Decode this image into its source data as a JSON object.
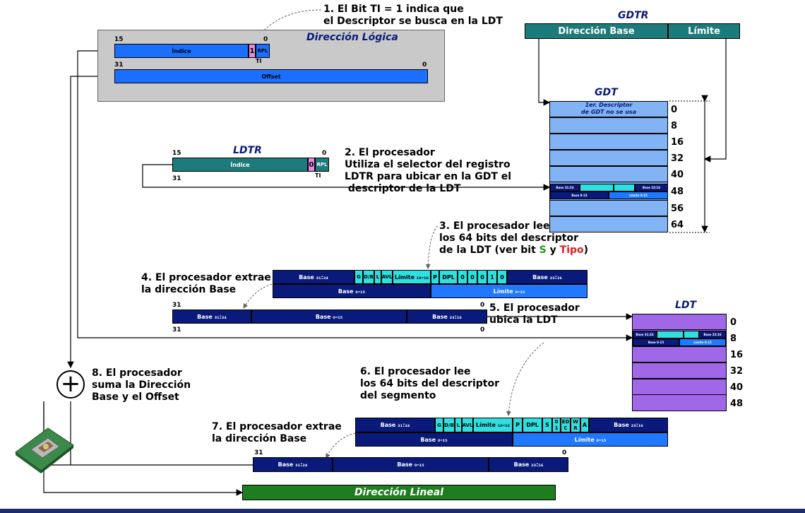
{
  "steps": {
    "s1": "1. El Bit TI = 1 indica que\nel Descriptor se busca en la LDT",
    "s2": "2. El procesador\nUtiliza el selector del registro\nLDTR para ubicar en la GDT el\n descriptor de la LDT",
    "s3a": "3. El procesador lee\nlos 64 bits del descriptor\nde la LDT (ver bit ",
    "s3_s": "S",
    "s3_y": " y ",
    "s3_tipo": "Tipo",
    "s3_end": ")",
    "s4": "4. El procesador extrae\nla dirección Base",
    "s5": "5. El procesador\nubica la LDT",
    "s6": "6. El procesador lee\nlos 64 bits del descriptor\ndel segmento",
    "s7": "7. El procesador extrae\nla dirección Base",
    "s8": "8. El procesador\nsuma la Dirección\nBase y el Offset"
  },
  "logical": {
    "title": "Dirección Lógica",
    "bit15": "15",
    "bit0": "0",
    "bit31": "31",
    "bit0b": "0",
    "indice": "Índice",
    "ti": "1",
    "rpl": "RPL",
    "ti_label": "TI",
    "offset": "Offset"
  },
  "gdtr": {
    "title": "GDTR",
    "base": "Dirección Base",
    "limite": "Límite"
  },
  "gdt": {
    "title": "GDT",
    "first": "1er. Descriptor\nde GDT no se usa",
    "offsets": [
      "0",
      "8",
      "16",
      "32",
      "40",
      "48",
      "56",
      "64"
    ],
    "mini_base_hi": "Base 31:24",
    "mini_base_mid": "Base 23:16",
    "mini_base_lo": "Base 0-15",
    "mini_limite": "Límite 0-15"
  },
  "ldtr": {
    "title": "LDTR",
    "bit15": "15",
    "bit0": "0",
    "bit31": "31",
    "indice": "Índice",
    "ti": "0",
    "rpl": "RPL",
    "ti_label": "TI"
  },
  "desc1": {
    "base_hi": "Base ₃₁:₂₄",
    "g": "G",
    "db": "D/B",
    "l": "L",
    "avl": "AVL",
    "lim_hi": "Límite ₁₉-₁₆",
    "p": "P",
    "dpl": "DPL",
    "type_bits": [
      "0",
      "0",
      "0",
      "1",
      "0"
    ],
    "base_mid": "Base ₂₃:₁₆",
    "base_lo": "Base ₀-₁₅",
    "lim_lo": "Límite ₀-₁₅"
  },
  "base1": {
    "bit31": "31",
    "bit0": "0",
    "hi": "Base ₃₁:₂₄",
    "lo": "Base ₀-₁₅",
    "mid": "Base ₂₃:₁₆",
    "bit31b": "31",
    "bit0b": "0"
  },
  "ldt": {
    "title": "LDT",
    "offsets": [
      "0",
      "8",
      "16",
      "32",
      "40",
      "48"
    ],
    "mini_base_hi": "Base 31:24",
    "mini_base_mid": "Base 23:16",
    "mini_base_lo": "Base 0-15",
    "mini_limite": "Límite 0-15"
  },
  "desc2": {
    "base_hi": "Base ₃₁:₂₄",
    "g": "G",
    "db": "D/B",
    "l": "L",
    "avl": "AVL",
    "lim_hi": "Límite ₁₉-₁₆",
    "p": "P",
    "dpl": "DPL",
    "s": "S",
    "b0": "0",
    "b1": "1",
    "ed": "ED",
    "c": "C",
    "w": "W",
    "r": "R",
    "a": "A",
    "base_mid": "Base ₂₃:₁₆",
    "base_lo": "Base ₀-₁₅",
    "lim_lo": "Límite ₀-₁₅"
  },
  "base2": {
    "bit31": "31",
    "bit0": "0",
    "hi": "Base ₃₁:₂₄",
    "lo": "Base ₀-₁₅",
    "mid": "Base ₂₃:₁₆"
  },
  "linear": {
    "label": "Dirección Lineal"
  },
  "adder": {
    "symbol": "+"
  },
  "colors": {
    "s_green": "#1a9a1a",
    "tipo_red": "#e02020",
    "navy": "#0a1a7a"
  }
}
